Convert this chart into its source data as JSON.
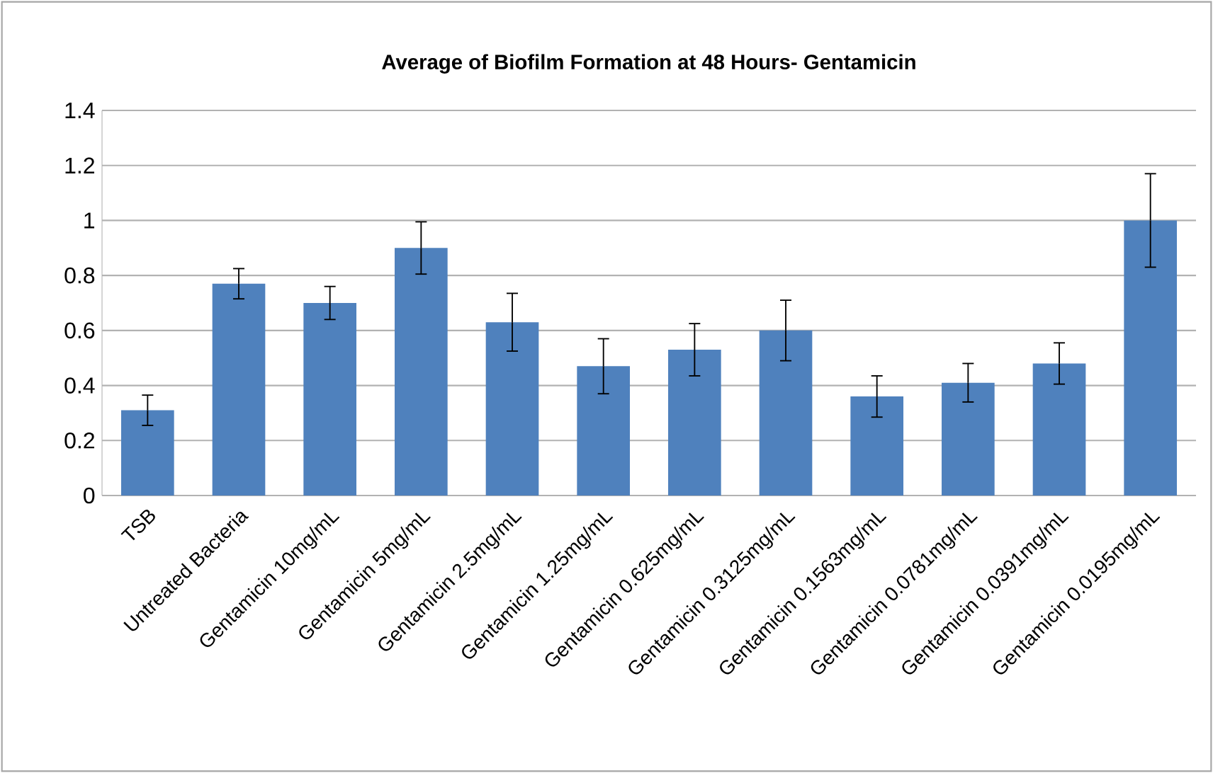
{
  "chart_data": {
    "type": "bar",
    "title": "Average of Biofilm Formation at 48 Hours- Gentamicin",
    "categories": [
      "TSB",
      "Untreated Bacteria",
      "Gentamicin 10mg/mL",
      "Gentamicin 5mg/mL",
      "Gentamicin 2.5mg/mL",
      "Gentamicin 1.25mg/mL",
      "Gentamicin 0.625mg/mL",
      "Gentamicin 0.3125mg/mL",
      "Gentamicin 0.1563mg/mL",
      "Gentamicin 0.0781mg/mL",
      "Gentamicin 0.0391mg/mL",
      "Gentamicin 0.0195mg/mL"
    ],
    "values": [
      0.31,
      0.77,
      0.7,
      0.9,
      0.63,
      0.47,
      0.53,
      0.6,
      0.36,
      0.41,
      0.48,
      1.0
    ],
    "errors": [
      0.055,
      0.055,
      0.06,
      0.095,
      0.105,
      0.1,
      0.095,
      0.11,
      0.075,
      0.07,
      0.075,
      0.17
    ],
    "color": "#4f81bd",
    "ylim": [
      0,
      1.4
    ],
    "yticks": [
      0,
      0.2,
      0.4,
      0.6,
      0.8,
      1,
      1.2,
      1.4
    ],
    "grid": "y"
  }
}
